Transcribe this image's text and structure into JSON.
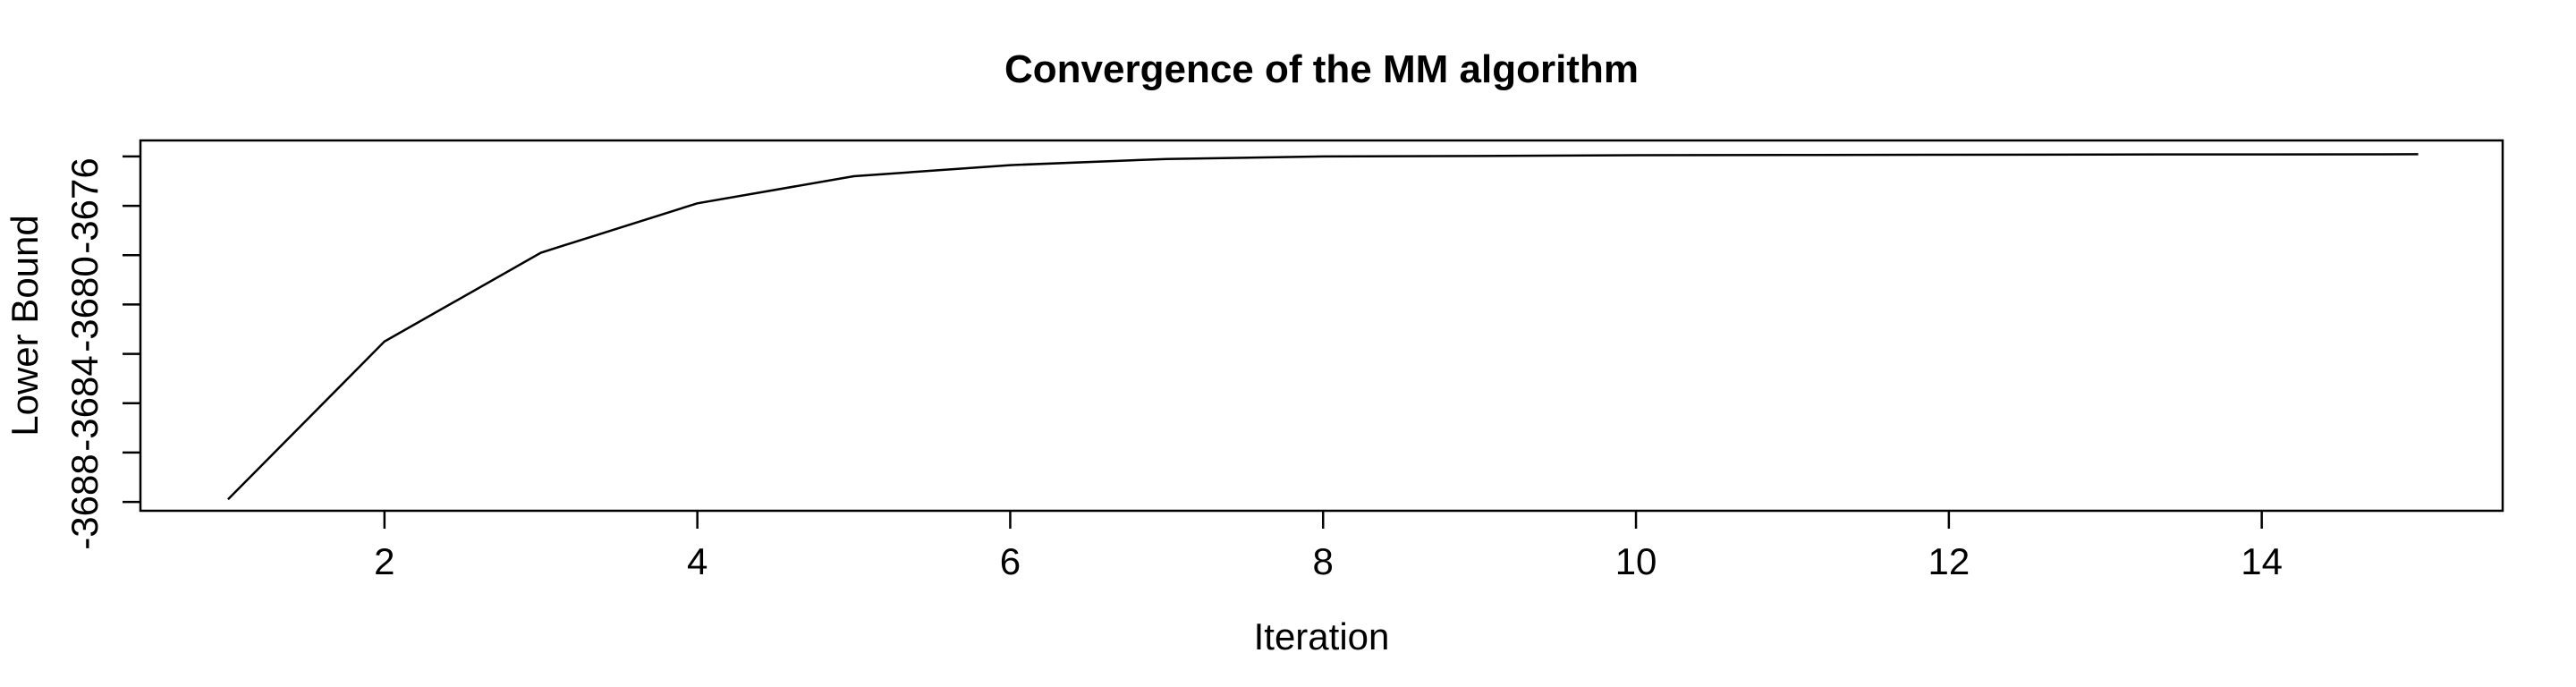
{
  "figure": {
    "background": "#ffffff",
    "foreground": "#000000"
  },
  "chart_data": {
    "type": "line",
    "title": "Convergence of the MM algorithm",
    "xlabel": "Iteration",
    "ylabel": "Lower Bound",
    "x": [
      1,
      2,
      3,
      4,
      5,
      6,
      7,
      8,
      9,
      10,
      11,
      12,
      13,
      14,
      15
    ],
    "y": [
      -3687.9,
      -3681.5,
      -3677.9,
      -3675.9,
      -3674.8,
      -3674.35,
      -3674.1,
      -3674.0,
      -3673.98,
      -3673.95,
      -3673.94,
      -3673.93,
      -3673.92,
      -3673.915,
      -3673.91
    ],
    "xlim": [
      0.44,
      15.54
    ],
    "ylim": [
      -3688.36,
      -3673.35
    ],
    "x_ticks": [
      2,
      4,
      6,
      8,
      10,
      12,
      14
    ],
    "x_tick_labels": [
      "2",
      "4",
      "6",
      "8",
      "10",
      "12",
      "14"
    ],
    "y_ticks": [
      -3674,
      -3676,
      -3678,
      -3680,
      -3682,
      -3684,
      -3686,
      -3688
    ],
    "y_tick_labels": [
      "",
      "-3676",
      "",
      "-3680",
      "",
      "-3684",
      "",
      "-3688"
    ],
    "line_color": "#000000",
    "axis_color": "#000000",
    "grid": false,
    "legend": null
  }
}
